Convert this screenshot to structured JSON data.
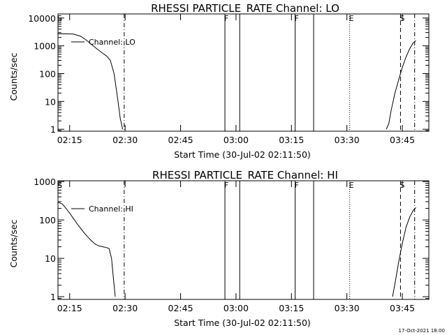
{
  "footer": {
    "stamp": "17-Oct-2021 18:00"
  },
  "chart_data": [
    {
      "type": "line",
      "title": "RHESSI PARTICLE_RATE Channel: LO",
      "xlabel": "Start Time (30-Jul-02 02:11:50)",
      "ylabel": "Counts/sec",
      "yscale": "log",
      "xlim": [
        "02:11:50",
        "03:52:10"
      ],
      "ylim": [
        0.85,
        14000
      ],
      "x_ticks": [
        "02:15",
        "02:30",
        "02:45",
        "03:00",
        "03:15",
        "03:30",
        "03:45"
      ],
      "y_ticks": [
        {
          "value": 1,
          "label": "1"
        },
        {
          "value": 10,
          "label": "10"
        },
        {
          "value": 100,
          "label": "100"
        },
        {
          "value": 1000,
          "label": "1000"
        },
        {
          "value": 10000,
          "label": "10000"
        }
      ],
      "legend": {
        "label": "Channel: LO",
        "placement": "top-left"
      },
      "series": [
        {
          "name": "Channel: LO",
          "segments": [
            [
              [
                "02:11:50",
                2700
              ],
              [
                "02:14:00",
                2700
              ],
              [
                "02:16:00",
                2650
              ],
              [
                "02:18:00",
                2200
              ],
              [
                "02:19:30",
                1600
              ],
              [
                "02:21:00",
                1100
              ],
              [
                "02:22:30",
                750
              ],
              [
                "02:24:00",
                530
              ],
              [
                "02:25:00",
                430
              ],
              [
                "02:26:00",
                300
              ],
              [
                "02:27:00",
                100
              ],
              [
                "02:28:00",
                12
              ],
              [
                "02:28:40",
                2.5
              ],
              [
                "02:29:20",
                1
              ]
            ],
            [
              [
                "03:40:40",
                1
              ],
              [
                "03:41:20",
                1.6
              ],
              [
                "03:42:00",
                5
              ],
              [
                "03:43:00",
                20
              ],
              [
                "03:44:00",
                60
              ],
              [
                "03:45:00",
                170
              ],
              [
                "03:46:00",
                400
              ],
              [
                "03:47:00",
                800
              ],
              [
                "03:48:00",
                1300
              ],
              [
                "03:48:40",
                1550
              ]
            ]
          ]
        }
      ],
      "event_lines": [
        {
          "time": "02:29:45",
          "style": "dash-dot"
        },
        {
          "time": "02:57:00",
          "style": "solid",
          "label": "F"
        },
        {
          "time": "03:01:00",
          "style": "solid"
        },
        {
          "time": "03:16:00",
          "style": "solid",
          "label": "F"
        },
        {
          "time": "03:21:00",
          "style": "solid"
        },
        {
          "time": "03:30:45",
          "style": "dotted",
          "label": "E"
        },
        {
          "time": "03:44:30",
          "style": "dashed",
          "label": "S"
        },
        {
          "time": "03:48:20",
          "style": "dash-dot"
        }
      ],
      "corner_label": "S"
    },
    {
      "type": "line",
      "title": "RHESSI PARTICLE_RATE Channel: HI",
      "xlabel": "Start Time (30-Jul-02 02:11:50)",
      "ylabel": "Counts/sec",
      "yscale": "log",
      "xlim": [
        "02:11:50",
        "03:52:10"
      ],
      "ylim": [
        0.85,
        1050
      ],
      "x_ticks": [
        "02:15",
        "02:30",
        "02:45",
        "03:00",
        "03:15",
        "03:30",
        "03:45"
      ],
      "y_ticks": [
        {
          "value": 1,
          "label": "1"
        },
        {
          "value": 10,
          "label": "10"
        },
        {
          "value": 100,
          "label": "100"
        },
        {
          "value": 1000,
          "label": "1000"
        }
      ],
      "legend": {
        "label": "Channel: HI",
        "placement": "top-left"
      },
      "series": [
        {
          "name": "Channel: HI",
          "segments": [
            [
              [
                "02:11:50",
                290
              ],
              [
                "02:13:00",
                260
              ],
              [
                "02:14:00",
                200
              ],
              [
                "02:15:00",
                150
              ],
              [
                "02:16:00",
                110
              ],
              [
                "02:17:00",
                80
              ],
              [
                "02:18:00",
                60
              ],
              [
                "02:19:00",
                45
              ],
              [
                "02:20:00",
                35
              ],
              [
                "02:21:00",
                28
              ],
              [
                "02:22:00",
                23
              ],
              [
                "02:23:00",
                21
              ],
              [
                "02:24:00",
                20
              ],
              [
                "02:25:00",
                19
              ],
              [
                "02:25:40",
                18
              ],
              [
                "02:26:20",
                10
              ],
              [
                "02:26:50",
                3
              ],
              [
                "02:27:20",
                1
              ]
            ],
            [
              [
                "03:42:20",
                1
              ],
              [
                "03:43:00",
                2.2
              ],
              [
                "03:44:00",
                8
              ],
              [
                "03:45:00",
                25
              ],
              [
                "03:46:00",
                65
              ],
              [
                "03:47:00",
                120
              ],
              [
                "03:48:00",
                180
              ],
              [
                "03:48:40",
                210
              ]
            ]
          ]
        }
      ],
      "event_lines": [
        {
          "time": "02:29:45",
          "style": "dash-dot"
        },
        {
          "time": "02:57:00",
          "style": "solid",
          "label": "F"
        },
        {
          "time": "03:01:00",
          "style": "solid"
        },
        {
          "time": "03:16:00",
          "style": "solid",
          "label": "F"
        },
        {
          "time": "03:21:00",
          "style": "solid"
        },
        {
          "time": "03:30:45",
          "style": "dotted",
          "label": "E"
        },
        {
          "time": "03:44:30",
          "style": "dashed",
          "label": "S"
        },
        {
          "time": "03:48:20",
          "style": "dash-dot"
        }
      ],
      "corner_label": "S"
    }
  ]
}
